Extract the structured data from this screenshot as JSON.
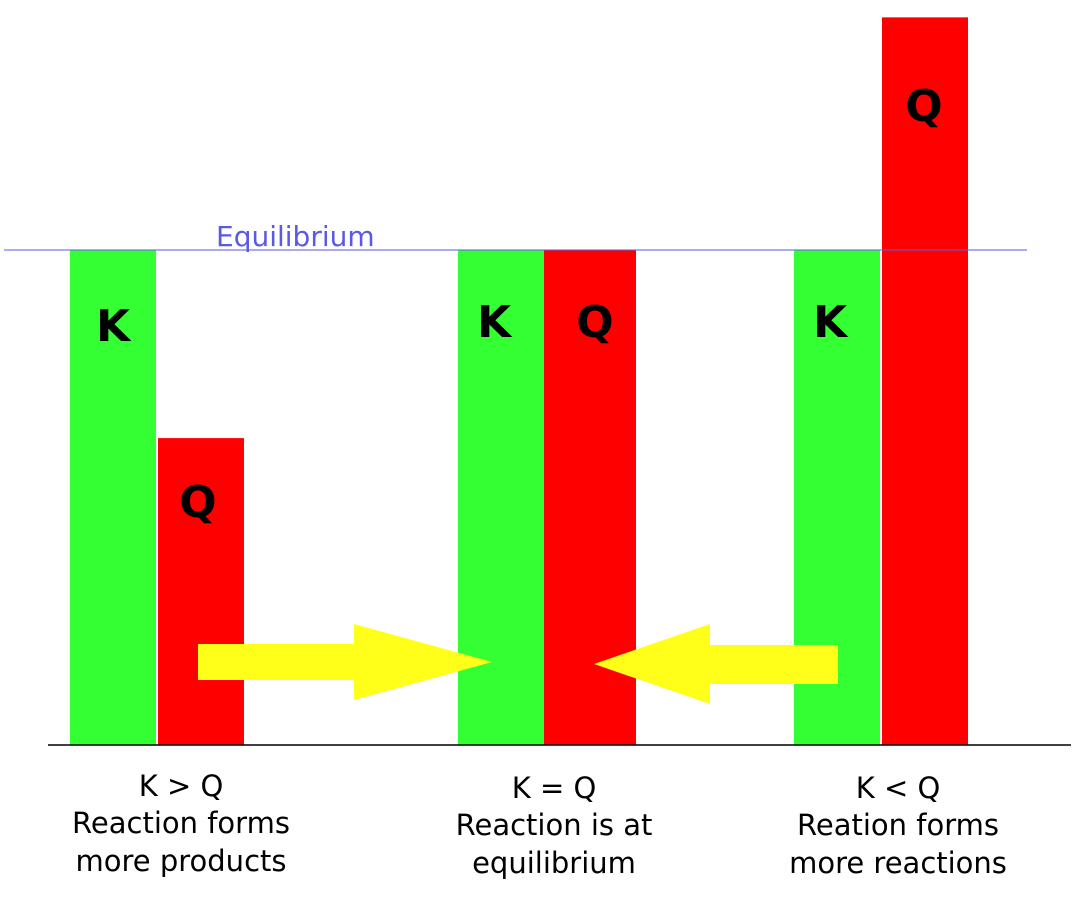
{
  "colors": {
    "k_bar": "#33ff33",
    "q_bar": "#ff0000",
    "arrow": "#ffff1a",
    "equilibrium_line": "#5a5ae6",
    "baseline": "#000000"
  },
  "equilibrium_label": "Equilibrium",
  "relative_heights_note_fraction_of_equilibrium": {
    "equilibrium": 1.0
  },
  "groups": [
    {
      "k_label": "K",
      "q_label": "Q",
      "k_level": 1.0,
      "q_level": 0.62,
      "caption": [
        "K > Q",
        "Reaction forms",
        "more products"
      ]
    },
    {
      "k_label": "K",
      "q_label": "Q",
      "k_level": 1.0,
      "q_level": 1.0,
      "caption": [
        "K = Q",
        "Reaction is at",
        "equilibrium"
      ]
    },
    {
      "k_label": "K",
      "q_label": "Q",
      "k_level": 1.0,
      "q_level": 1.47,
      "caption": [
        "K < Q",
        "Reation forms",
        "more reactions"
      ]
    }
  ],
  "arrows": [
    {
      "direction": "right",
      "meaning": "toward equilibrium"
    },
    {
      "direction": "left",
      "meaning": "toward equilibrium"
    }
  ]
}
